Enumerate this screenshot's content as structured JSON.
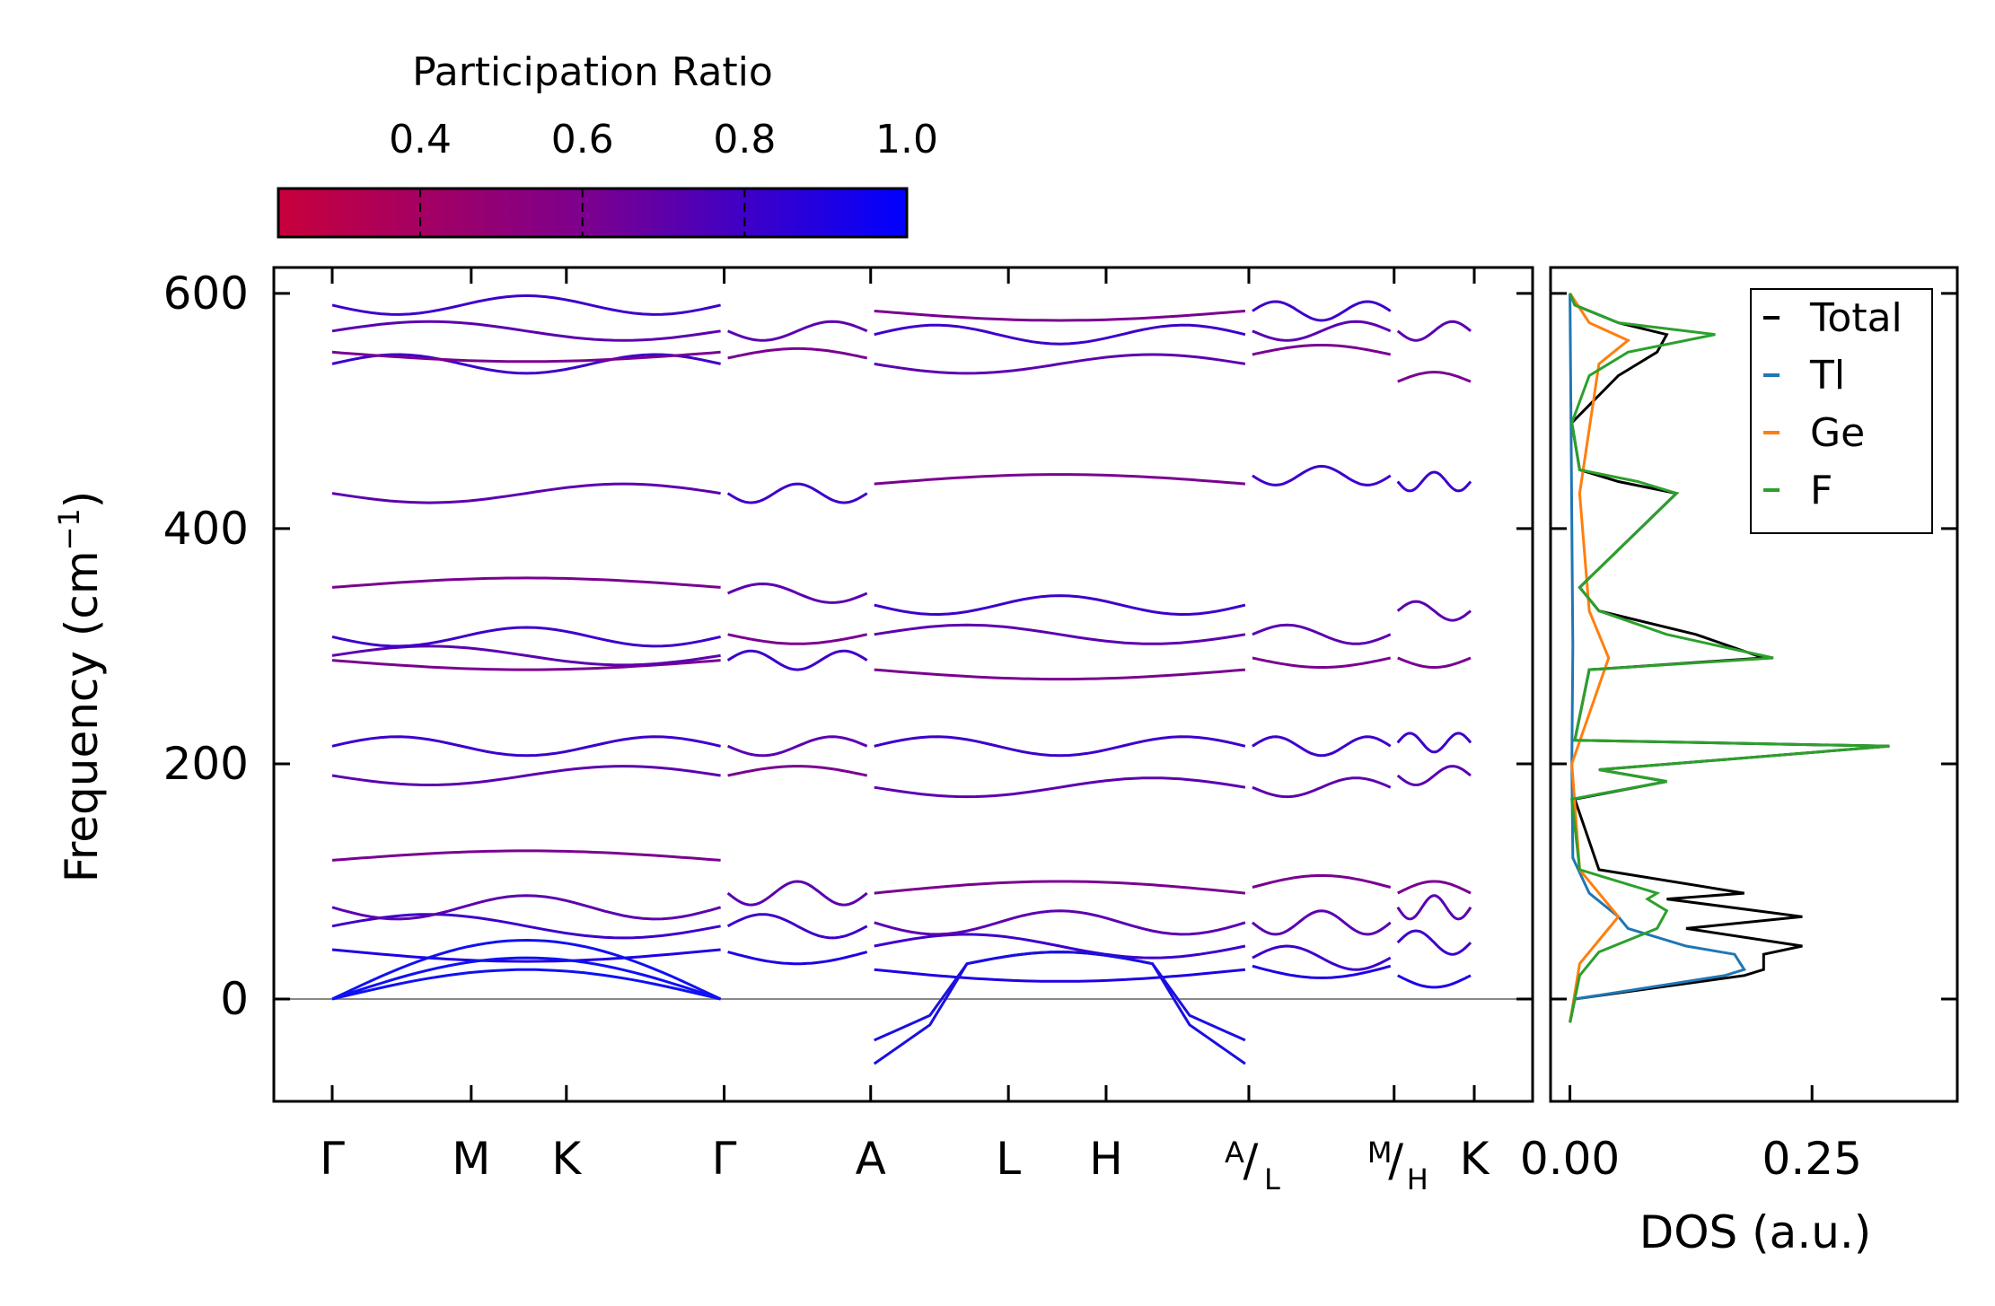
{
  "chart_data": [
    {
      "type": "line",
      "title": "",
      "xlabel": "",
      "ylabel": "Frequency (cm⁻¹)",
      "ylabel_main": "Frequency (cm",
      "ylabel_sup": "−1",
      "ylabel_close": ")",
      "ylim": [
        -87,
        622
      ],
      "yticks": [
        "600",
        "400",
        "200",
        "0"
      ],
      "ytick_values": [
        600,
        400,
        200,
        0
      ],
      "xlim": [
        0,
        9.12
      ],
      "kpath_positions": [
        0,
        1.11,
        1.87,
        3.13,
        4.3,
        5.4,
        6.18,
        7.32,
        8.48,
        9.12
      ],
      "kpath_labels": [
        "Γ",
        "M",
        "K",
        "Γ",
        "A",
        "L",
        "H",
        "A/L",
        "M/H",
        "K"
      ],
      "split_labels": [
        {
          "index": 7,
          "top": "A",
          "bottom": "L"
        },
        {
          "index": 8,
          "top": "M",
          "bottom": "H"
        }
      ],
      "segments": [
        [
          0,
          3.13
        ],
        [
          3.13,
          4.3
        ],
        [
          4.3,
          7.32
        ],
        [
          7.32,
          8.48
        ],
        [
          8.48,
          9.12
        ]
      ],
      "color_by": "Participation Ratio",
      "band_samples": {
        "seg0": {
          "acoustic": [
            [
              0,
              1
            ],
            [
              0,
              1
            ],
            [
              0,
              1
            ]
          ],
          "optical": [
            42,
            62,
            78,
            118,
            190,
            215,
            288,
            292,
            308,
            350,
            430,
            540,
            550,
            568,
            590
          ]
        },
        "seg1": {
          "optical": [
            40,
            62,
            90,
            190,
            215,
            288,
            310,
            345,
            430,
            545,
            568
          ]
        },
        "seg2": {
          "imaginary": [
            -35,
            -55
          ],
          "optical": [
            25,
            45,
            65,
            90,
            180,
            215,
            280,
            310,
            335,
            438,
            540,
            565,
            585
          ]
        },
        "seg3": {
          "optical": [
            28,
            35,
            65,
            95,
            180,
            215,
            290,
            310,
            445,
            548,
            568,
            585
          ]
        },
        "seg4": {
          "optical": [
            20,
            48,
            78,
            90,
            190,
            218,
            290,
            330,
            440,
            525,
            568
          ]
        }
      }
    },
    {
      "type": "line",
      "title": "",
      "xlabel": "DOS (a.u.)",
      "ylabel": "",
      "xlim": [
        -0.02,
        0.4
      ],
      "xticks": [
        "0.00",
        "0.25"
      ],
      "xtick_values": [
        0.0,
        0.25
      ],
      "ylim": [
        -87,
        622
      ],
      "legend_position": "top-right",
      "series": [
        {
          "name": "Total",
          "color": "#000000",
          "points": [
            [
              -20,
              0.0
            ],
            [
              0,
              0.005
            ],
            [
              20,
              0.18
            ],
            [
              25,
              0.2
            ],
            [
              38,
              0.2
            ],
            [
              45,
              0.24
            ],
            [
              60,
              0.12
            ],
            [
              70,
              0.24
            ],
            [
              85,
              0.1
            ],
            [
              90,
              0.18
            ],
            [
              110,
              0.03
            ],
            [
              170,
              0.005
            ],
            [
              185,
              0.1
            ],
            [
              195,
              0.03
            ],
            [
              215,
              0.33
            ],
            [
              220,
              0.005
            ],
            [
              280,
              0.02
            ],
            [
              290,
              0.2
            ],
            [
              310,
              0.13
            ],
            [
              330,
              0.03
            ],
            [
              350,
              0.01
            ],
            [
              430,
              0.11
            ],
            [
              440,
              0.05
            ],
            [
              450,
              0.01
            ],
            [
              490,
              0.002
            ],
            [
              530,
              0.05
            ],
            [
              550,
              0.09
            ],
            [
              565,
              0.1
            ],
            [
              575,
              0.05
            ],
            [
              590,
              0.005
            ],
            [
              600,
              0.0
            ]
          ]
        },
        {
          "name": "Tl",
          "color": "#1f77b4",
          "points": [
            [
              -20,
              0.0
            ],
            [
              0,
              0.005
            ],
            [
              20,
              0.16
            ],
            [
              25,
              0.18
            ],
            [
              38,
              0.17
            ],
            [
              45,
              0.12
            ],
            [
              60,
              0.06
            ],
            [
              70,
              0.05
            ],
            [
              90,
              0.02
            ],
            [
              120,
              0.003
            ],
            [
              200,
              0.002
            ],
            [
              300,
              0.003
            ],
            [
              600,
              0.0
            ]
          ]
        },
        {
          "name": "Ge",
          "color": "#ff7f0e",
          "points": [
            [
              -20,
              0.0
            ],
            [
              30,
              0.01
            ],
            [
              50,
              0.03
            ],
            [
              70,
              0.05
            ],
            [
              90,
              0.03
            ],
            [
              110,
              0.01
            ],
            [
              200,
              0.002
            ],
            [
              290,
              0.04
            ],
            [
              310,
              0.03
            ],
            [
              330,
              0.02
            ],
            [
              430,
              0.01
            ],
            [
              540,
              0.03
            ],
            [
              560,
              0.06
            ],
            [
              575,
              0.02
            ],
            [
              600,
              0.0
            ]
          ]
        },
        {
          "name": "F",
          "color": "#2ca02c",
          "points": [
            [
              -20,
              0.0
            ],
            [
              20,
              0.01
            ],
            [
              40,
              0.03
            ],
            [
              60,
              0.09
            ],
            [
              75,
              0.1
            ],
            [
              85,
              0.08
            ],
            [
              90,
              0.09
            ],
            [
              110,
              0.01
            ],
            [
              170,
              0.002
            ],
            [
              185,
              0.1
            ],
            [
              195,
              0.03
            ],
            [
              215,
              0.33
            ],
            [
              220,
              0.005
            ],
            [
              280,
              0.02
            ],
            [
              290,
              0.21
            ],
            [
              310,
              0.1
            ],
            [
              330,
              0.03
            ],
            [
              350,
              0.01
            ],
            [
              430,
              0.11
            ],
            [
              440,
              0.07
            ],
            [
              450,
              0.01
            ],
            [
              490,
              0.002
            ],
            [
              530,
              0.02
            ],
            [
              550,
              0.06
            ],
            [
              565,
              0.15
            ],
            [
              575,
              0.05
            ],
            [
              590,
              0.005
            ],
            [
              600,
              0.0
            ]
          ]
        }
      ]
    }
  ],
  "colorbar": {
    "title": "Participation Ratio",
    "ticks": [
      "0.4",
      "0.6",
      "0.8",
      "1.0"
    ],
    "tick_values": [
      0.4,
      0.6,
      0.8,
      1.0
    ],
    "range": [
      0.225,
      1.0
    ],
    "colors": {
      "low": "#c8003c",
      "mid": "#7a0090",
      "high": "#0000ff"
    }
  }
}
